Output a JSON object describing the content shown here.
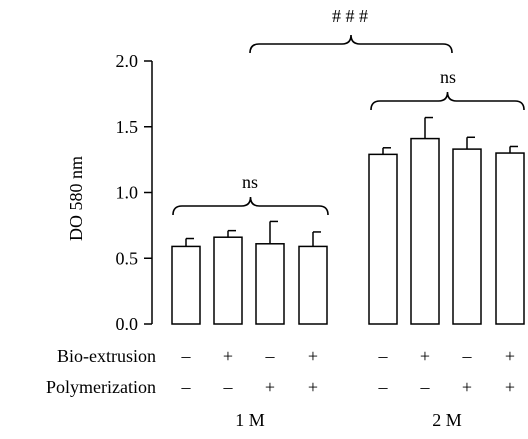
{
  "chart_data": {
    "type": "bar",
    "ylabel": "DO 580 nm",
    "ylim": [
      0,
      2.0
    ],
    "yticks": [
      "0.0",
      "0.5",
      "1.0",
      "1.5",
      "2.0"
    ],
    "groups": [
      {
        "label": "1 M",
        "bars": [
          {
            "value": 0.59,
            "error": 0.06
          },
          {
            "value": 0.66,
            "error": 0.05
          },
          {
            "value": 0.61,
            "error": 0.17
          },
          {
            "value": 0.59,
            "error": 0.11
          }
        ]
      },
      {
        "label": "2 M",
        "bars": [
          {
            "value": 1.29,
            "error": 0.05
          },
          {
            "value": 1.41,
            "error": 0.16
          },
          {
            "value": 1.33,
            "error": 0.09
          },
          {
            "value": 1.3,
            "error": 0.05
          }
        ]
      }
    ],
    "condition_rows": [
      {
        "label": "Bio-extrusion",
        "marks": [
          "–",
          "+",
          "–",
          "+",
          "–",
          "+",
          "–",
          "+"
        ]
      },
      {
        "label": "Polymerization",
        "marks": [
          "–",
          "–",
          "+",
          "+",
          "–",
          "–",
          "+",
          "+"
        ]
      }
    ],
    "annotations": {
      "within_1M": "ns",
      "within_2M": "ns",
      "between_groups": "# # #"
    },
    "grid": false,
    "bar_fill": "#ffffff",
    "bar_stroke": "#000000"
  }
}
